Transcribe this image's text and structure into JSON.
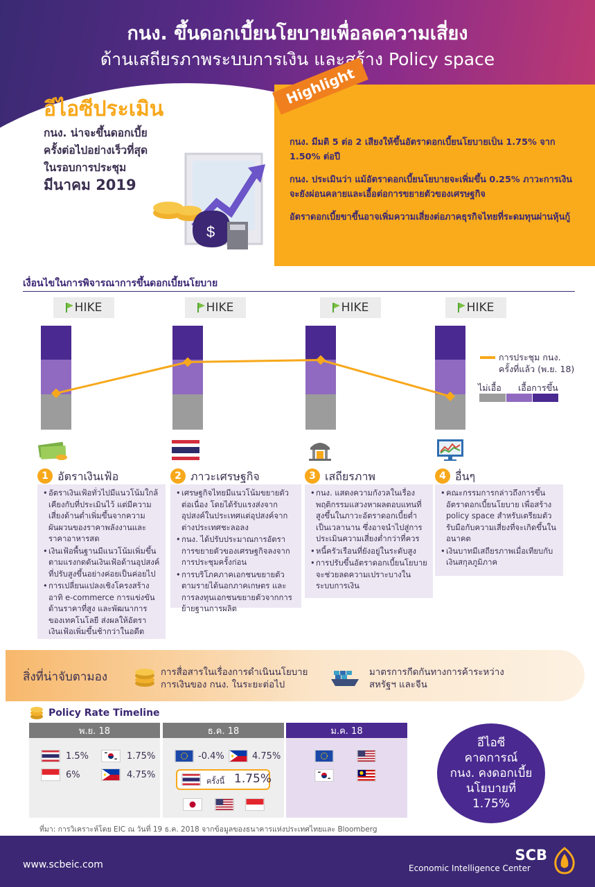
{
  "header": {
    "title_line1": "กนง. ขึ้นดอกเบี้ยนโยบายเพื่อลดความเสี่ยง",
    "title_line2": "ด้านเสถียรภาพระบบการเงิน และสร้าง Policy space"
  },
  "eic_assessment": {
    "heading": "อีไอซีประเมิน",
    "line1": "กนง. น่าจะขึ้นดอกเบี้ย",
    "line2": "ครั้งต่อไปอย่างเร็วที่สุด",
    "line3": "ในรอบการประชุม",
    "line4": "มีนาคม 2019"
  },
  "highlight": {
    "tag": "Highlight",
    "p1": "กนง. มีมติ 5 ต่อ 2 เสียงให้ขึ้นอัตราดอกเบี้ยนโยบายเป็น 1.75% จาก 1.50% ต่อปี",
    "p2": "กนง. ประเมินว่า แม้อัตราดอกเบี้ยนโยบายจะเพิ่มขึ้น 0.25% ภาวะการเงินจะยังผ่อนคลายและเอื้อต่อการขยายตัวของเศรษฐกิจ",
    "p3": "อัตราดอกเบี้ยขาขึ้นอาจเพิ่มความเสี่ยงต่อภาคธุรกิจไทยที่ระดมทุนผ่านหุ้นกู้"
  },
  "conditions": {
    "title": "เงื่อนไขในการพิจารณาการขึ้นดอกเบี้ยนโยบาย",
    "hike_label": "HIKE",
    "legend_line": "การประชุม กนง.",
    "legend_line2": "ครั้งที่แล้ว (พ.ย. 18)",
    "legend_not_favor": "ไม่เอื้อ",
    "legend_favor": "เอื้อการขึ้น",
    "colors": {
      "not_favor": "#9c9c9c",
      "mid": "#8f6ac0",
      "favor": "#4a2990",
      "line": "#f7a81b"
    },
    "previous_meeting_levels": [
      0.35,
      0.65,
      0.67,
      0.32
    ]
  },
  "categories": [
    {
      "num": "1",
      "title": "อัตราเงินเฟ้อ",
      "icon": "money-icon",
      "bullets": [
        "อัตราเงินเฟ้อทั่วไปมีแนวโน้มใกล้เคียงกับที่ประเมินไว้ แต่มีความเสี่ยงด้านต่ำเพิ่มขึ้นจากความผันผวนของราคาพลังงานและราคาอาหารสด",
        "เงินเฟ้อพื้นฐานมีแนวโน้มเพิ่มขึ้นตามแรงกดดันเงินเฟ้อด้านอุปสงค์ที่ปรับสูงขึ้นอย่างค่อยเป็นค่อยไป",
        "การเปลี่ยนแปลงเชิงโครงสร้าง อาทิ e-commerce การแข่งขันด้านราคาที่สูง และพัฒนาการของเทคโนโลยี ส่งผลให้อัตราเงินเฟ้อเพิ่มขึ้นช้ากว่าในอดีต"
      ]
    },
    {
      "num": "2",
      "title": "ภาวะเศรษฐกิจ",
      "icon": "thai-flag-icon",
      "bullets": [
        "เศรษฐกิจไทยมีแนวโน้มขยายตัวต่อเนื่อง โดยได้รับแรงส่งจากอุปสงค์ในประเทศแต่อุปสงค์จากต่างประเทศชะลอลง",
        "กนง. ได้ปรับประมาณการอัตราการขยายตัวของเศรษฐกิจลงจากการประชุมครั้งก่อน",
        "การบริโภคภาคเอกชนขยายตัวตามรายได้นอกภาคเกษตร และการลงทุนเอกชนขยายตัวจากการย้ายฐานการผลิต"
      ]
    },
    {
      "num": "3",
      "title": "เสถียรภาพ",
      "icon": "bank-icon",
      "bullets": [
        "กนง. แสดงความกังวลในเรื่องพฤติกรรมแสวงหาผลตอบแทนที่สูงขึ้นในภาวะอัตราดอกเบี้ยต่ำเป็นเวลานาน ซึ่งอาจนำไปสู่การประเมินความเสี่ยงต่ำกว่าที่ควร",
        "หนี้ครัวเรือนที่ยังอยู่ในระดับสูง",
        "การปรับขึ้นอัตราดอกเบี้ยนโยบายจะช่วยลดความเปราะบางในระบบการเงิน"
      ]
    },
    {
      "num": "4",
      "title": "อื่นๆ",
      "icon": "chart-monitor-icon",
      "bullets": [
        "คณะกรรมการกล่าวถึงการขึ้นอัตราดอกเบี้ยนโยบาย เพื่อสร้าง policy space สำหรับเตรียมตัวรับมือกับความเสี่ยงที่จะเกิดขึ้นในอนาคต",
        "เงินบาทมีเสถียรภาพเมื่อเทียบกับเงินสกุลภูมิภาค"
      ]
    }
  ],
  "watch": {
    "label": "สิ่งที่น่าจับตามอง",
    "item1_line1": "การสื่อสารในเรื่องการดำเนินนโยบาย",
    "item1_line2": "การเงินของ กนง. ในระยะต่อไป",
    "item2_line1": "มาตรการกีดกันทางการค้าระหว่าง",
    "item2_line2": "สหรัฐฯ และจีน"
  },
  "timeline": {
    "title": "Policy Rate Timeline",
    "nov_label": "พ.ย. 18",
    "dec_label": "ธ.ค. 18",
    "jan_label": "ม.ค. 18",
    "nov_rates": {
      "th": "1.5%",
      "kr": "1.75%",
      "id": "6%",
      "ph": "4.75%"
    },
    "dec_rates": {
      "eu": "-0.4%",
      "ph": "4.75%",
      "th_this_time": "ครั้งนี้",
      "th": "1.75%"
    }
  },
  "forecast": {
    "line1": "อีไอซี",
    "line2": "คาดการณ์",
    "line3": "กนง. คงดอกเบี้ย",
    "line4": "นโยบายที่",
    "line5": "1.75%"
  },
  "source": "ที่มา: การวิเคราะห์โดย EIC ณ วันที่ 19 ธ.ค. 2018 จากข้อมูลของธนาคารแห่งประเทศไทยและ Bloomberg",
  "footer": {
    "url": "www.scbeic.com",
    "brand": "SCB",
    "brand_sub": "Economic Intelligence Center"
  }
}
